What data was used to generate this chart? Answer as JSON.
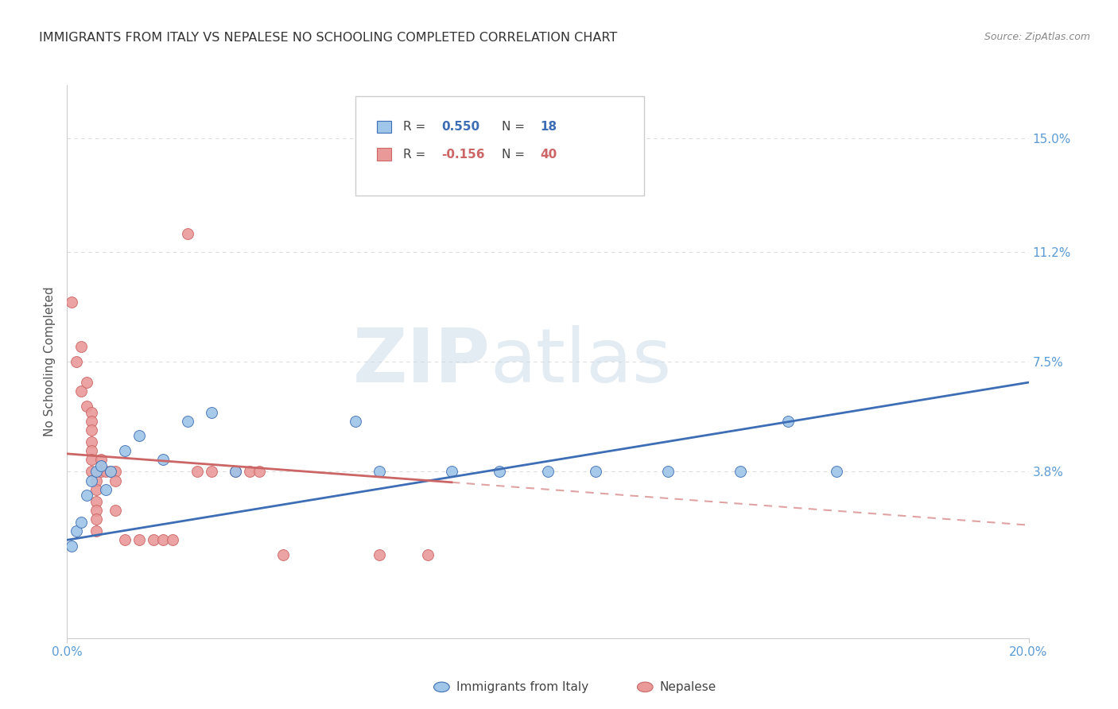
{
  "title": "IMMIGRANTS FROM ITALY VS NEPALESE NO SCHOOLING COMPLETED CORRELATION CHART",
  "source": "Source: ZipAtlas.com",
  "ylabel": "No Schooling Completed",
  "ytick_labels": [
    "15.0%",
    "11.2%",
    "7.5%",
    "3.8%"
  ],
  "ytick_values": [
    0.15,
    0.112,
    0.075,
    0.038
  ],
  "xlim": [
    0.0,
    0.2
  ],
  "ylim": [
    -0.018,
    0.168
  ],
  "legend_labels": [
    "Immigrants from Italy",
    "Nepalese"
  ],
  "blue_scatter": [
    [
      0.001,
      0.013
    ],
    [
      0.002,
      0.018
    ],
    [
      0.003,
      0.021
    ],
    [
      0.004,
      0.03
    ],
    [
      0.005,
      0.035
    ],
    [
      0.006,
      0.038
    ],
    [
      0.007,
      0.04
    ],
    [
      0.008,
      0.032
    ],
    [
      0.009,
      0.038
    ],
    [
      0.012,
      0.045
    ],
    [
      0.015,
      0.05
    ],
    [
      0.02,
      0.042
    ],
    [
      0.025,
      0.055
    ],
    [
      0.03,
      0.058
    ],
    [
      0.035,
      0.038
    ],
    [
      0.06,
      0.055
    ],
    [
      0.065,
      0.038
    ],
    [
      0.08,
      0.038
    ],
    [
      0.09,
      0.038
    ],
    [
      0.1,
      0.038
    ],
    [
      0.11,
      0.038
    ],
    [
      0.125,
      0.038
    ],
    [
      0.14,
      0.038
    ],
    [
      0.15,
      0.055
    ],
    [
      0.16,
      0.038
    ]
  ],
  "pink_scatter": [
    [
      0.001,
      0.095
    ],
    [
      0.002,
      0.075
    ],
    [
      0.003,
      0.08
    ],
    [
      0.003,
      0.065
    ],
    [
      0.004,
      0.068
    ],
    [
      0.004,
      0.06
    ],
    [
      0.005,
      0.058
    ],
    [
      0.005,
      0.055
    ],
    [
      0.005,
      0.052
    ],
    [
      0.005,
      0.048
    ],
    [
      0.005,
      0.045
    ],
    [
      0.005,
      0.042
    ],
    [
      0.005,
      0.038
    ],
    [
      0.006,
      0.035
    ],
    [
      0.006,
      0.032
    ],
    [
      0.006,
      0.028
    ],
    [
      0.006,
      0.025
    ],
    [
      0.006,
      0.022
    ],
    [
      0.006,
      0.018
    ],
    [
      0.007,
      0.038
    ],
    [
      0.007,
      0.042
    ],
    [
      0.008,
      0.038
    ],
    [
      0.009,
      0.038
    ],
    [
      0.01,
      0.038
    ],
    [
      0.01,
      0.035
    ],
    [
      0.01,
      0.025
    ],
    [
      0.012,
      0.015
    ],
    [
      0.015,
      0.015
    ],
    [
      0.018,
      0.015
    ],
    [
      0.02,
      0.015
    ],
    [
      0.022,
      0.015
    ],
    [
      0.025,
      0.118
    ],
    [
      0.027,
      0.038
    ],
    [
      0.03,
      0.038
    ],
    [
      0.035,
      0.038
    ],
    [
      0.038,
      0.038
    ],
    [
      0.04,
      0.038
    ],
    [
      0.045,
      0.01
    ],
    [
      0.065,
      0.01
    ],
    [
      0.075,
      0.01
    ]
  ],
  "blue_line_x": [
    0.0,
    0.2
  ],
  "blue_line_y": [
    0.015,
    0.068
  ],
  "pink_line_x": [
    0.0,
    0.2
  ],
  "pink_line_y": [
    0.044,
    0.02
  ],
  "watermark_zip": "ZIP",
  "watermark_atlas": "atlas",
  "bg_color": "#ffffff",
  "scatter_blue_color": "#9fc5e8",
  "scatter_pink_color": "#ea9999",
  "line_blue_color": "#3d6eb5",
  "line_pink_color": "#cc6666",
  "grid_color": "#dddddd",
  "right_tick_color": "#5b9bd5",
  "legend_box_color": "#cccccc",
  "title_color": "#333333",
  "source_color": "#888888",
  "ylabel_color": "#555555",
  "xtick_color": "#5b9bd5"
}
